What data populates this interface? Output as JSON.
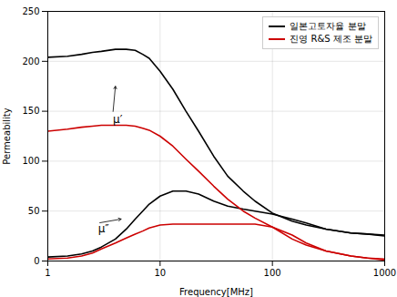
{
  "chart_data": {
    "type": "line",
    "xlabel": "Frequency[MHz]",
    "ylabel": "Permeability",
    "log": "x",
    "xlim": [
      1,
      1000
    ],
    "xticks": [
      1,
      10,
      100,
      1000
    ],
    "ylim": [
      0,
      250
    ],
    "yticks": [
      0,
      50,
      100,
      150,
      200,
      250
    ],
    "grid": true,
    "legend": "upper right",
    "x": [
      1,
      1.5,
      2,
      2.5,
      3,
      4,
      5,
      6,
      7,
      8,
      10,
      13,
      17,
      22,
      30,
      40,
      55,
      70,
      100,
      150,
      200,
      300,
      500,
      700,
      1000
    ],
    "series": [
      {
        "name": "일본고토자율 분말",
        "color": "#000000",
        "values": [
          204,
          205,
          207,
          209,
          210,
          212,
          212,
          211,
          207,
          203,
          190,
          172,
          150,
          130,
          105,
          85,
          70,
          60,
          48,
          40,
          36,
          32,
          28,
          27,
          25
        ]
      },
      {
        "color": "#000000",
        "values": [
          4,
          5,
          7,
          10,
          14,
          22,
          32,
          42,
          50,
          57,
          65,
          70,
          70,
          67,
          60,
          55,
          52,
          50,
          47,
          42,
          38,
          32,
          28,
          27,
          26
        ]
      },
      {
        "name": "진영 R&S 제조 분말",
        "color": "#cc0000",
        "values": [
          130,
          132,
          134,
          135,
          136,
          136,
          136,
          135,
          133,
          131,
          125,
          115,
          102,
          90,
          75,
          62,
          50,
          43,
          34,
          22,
          16,
          10,
          5,
          3,
          2
        ]
      },
      {
        "color": "#cc0000",
        "values": [
          2,
          3,
          5,
          8,
          12,
          18,
          23,
          27,
          30,
          33,
          36,
          37,
          37,
          37,
          37,
          37,
          37,
          37,
          34,
          26,
          18,
          10,
          5,
          3,
          1
        ]
      }
    ],
    "annotations": [
      {
        "text": "μ′",
        "x": 3.8,
        "y": 148,
        "arrow_x": 4.0,
        "arrow_y": 175
      },
      {
        "text": "μ″",
        "x": 2.8,
        "y": 38,
        "arrow_x": 4.5,
        "arrow_y": 42
      }
    ]
  }
}
